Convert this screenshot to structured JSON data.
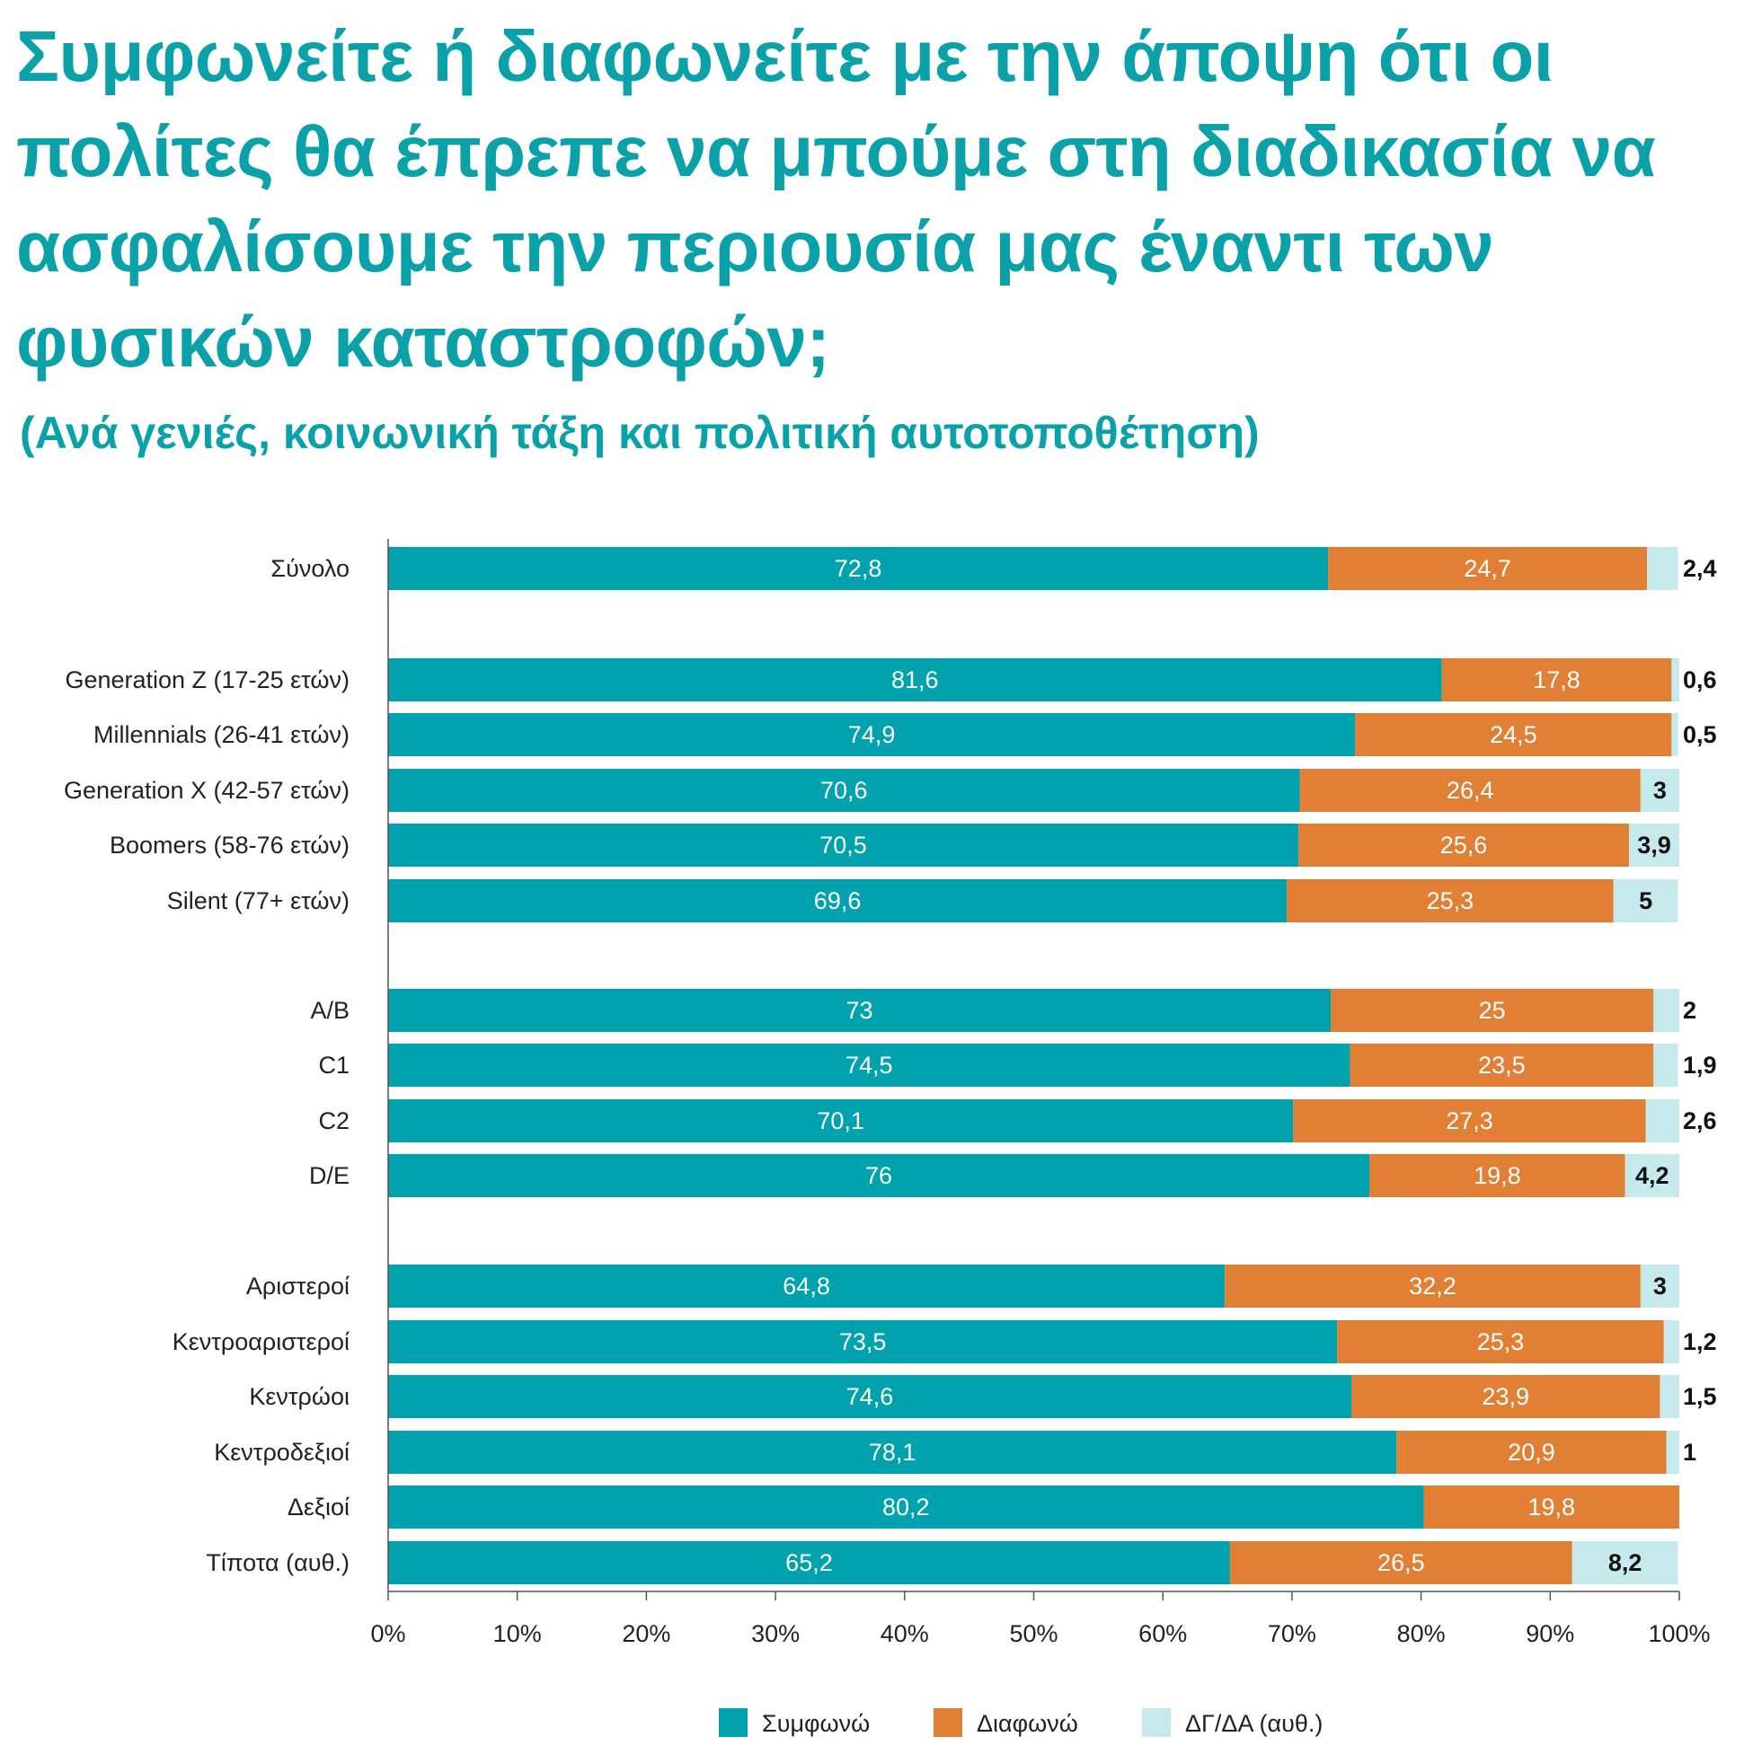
{
  "title": "Συμφωνείτε ή διαφωνείτε με την άποψη ότι οι πολίτες θα έπρεπε να μπούμε στη διαδικασία να ασφαλίσουμε την περιουσία μας έναντι των φυσικών καταστροφών;",
  "subtitle": "(Ανά γενιές, κοινωνική τάξη και πολιτική αυτοτοποθέτηση)",
  "colors": {
    "agree": "#00a3ad",
    "disagree": "#e17f34",
    "dk": "#c6e9ec",
    "title": "#0aa1a8"
  },
  "chart_data": {
    "type": "bar",
    "orientation": "horizontal",
    "stacked": "100%",
    "categories": [
      "Σύνολο",
      "Generation Z (17-25 ετών)",
      "Millennials (26-41 ετών)",
      "Generation X (42-57 ετών)",
      "Boomers (58-76 ετών)",
      "Silent (77+ ετών)",
      "A/B",
      "C1",
      "C2",
      "D/E",
      "Αριστεροί",
      "Κεντροαριστεροί",
      "Κεντρώοι",
      "Κεντροδεξιοί",
      "Δεξιοί",
      "Τίποτα (αυθ.)"
    ],
    "series": [
      {
        "name": "Συμφωνώ",
        "values": [
          72.8,
          81.6,
          74.9,
          70.6,
          70.5,
          69.6,
          73,
          74.5,
          70.1,
          76,
          64.8,
          73.5,
          74.6,
          78.1,
          80.2,
          65.2
        ],
        "labels": [
          "72,8",
          "81,6",
          "74,9",
          "70,6",
          "70,5",
          "69,6",
          "73",
          "74,5",
          "70,1",
          "76",
          "64,8",
          "73,5",
          "74,6",
          "78,1",
          "80,2",
          "65,2"
        ]
      },
      {
        "name": "Διαφωνώ",
        "values": [
          24.7,
          17.8,
          24.5,
          26.4,
          25.6,
          25.3,
          25,
          23.5,
          27.3,
          19.8,
          32.2,
          25.3,
          23.9,
          20.9,
          19.8,
          26.5
        ],
        "labels": [
          "24,7",
          "17,8",
          "24,5",
          "26,4",
          "25,6",
          "25,3",
          "25",
          "23,5",
          "27,3",
          "19,8",
          "32,2",
          "25,3",
          "23,9",
          "20,9",
          "19,8",
          "26,5"
        ]
      },
      {
        "name": "ΔΓ/ΔΑ (αυθ.)",
        "values": [
          2.4,
          0.6,
          0.5,
          3,
          3.9,
          5,
          2,
          1.9,
          2.6,
          4.2,
          3,
          1.2,
          1.5,
          1,
          0,
          8.2
        ],
        "labels": [
          "2,4",
          "0,6",
          "0,5",
          "3",
          "3,9",
          "5",
          "2",
          "1,9",
          "2,6",
          "4,2",
          "3",
          "1,2",
          "1,5",
          "1",
          "",
          "8,2"
        ]
      }
    ],
    "xlim": [
      0,
      100
    ],
    "x_ticks": [
      "0%",
      "10%",
      "20%",
      "30%",
      "40%",
      "50%",
      "60%",
      "70%",
      "80%",
      "90%",
      "100%"
    ],
    "legend": [
      "Συμφωνώ",
      "Διαφωνώ",
      "ΔΓ/ΔΑ (αυθ.)"
    ],
    "legend_position": "bottom",
    "grid": false
  }
}
